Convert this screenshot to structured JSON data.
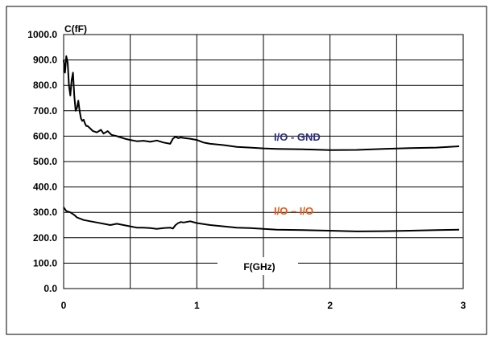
{
  "chart_data": {
    "type": "line",
    "ylabel": "C(fF)",
    "xlabel": "F(GHz)",
    "xlim": [
      0,
      3
    ],
    "ylim": [
      0,
      1000
    ],
    "x_ticks": [
      "0",
      "1",
      "2",
      "3"
    ],
    "y_ticks": [
      "0.0",
      "100.0",
      "200.0",
      "300.0",
      "400.0",
      "500.0",
      "600.0",
      "700.0",
      "800.0",
      "900.0",
      "1000.0"
    ],
    "grid": true,
    "series": [
      {
        "name": "I/O - GND",
        "color": "#2e2e80",
        "x": [
          0.0,
          0.01,
          0.02,
          0.03,
          0.04,
          0.05,
          0.06,
          0.07,
          0.08,
          0.09,
          0.1,
          0.11,
          0.12,
          0.13,
          0.14,
          0.15,
          0.16,
          0.17,
          0.18,
          0.2,
          0.22,
          0.25,
          0.28,
          0.3,
          0.33,
          0.36,
          0.4,
          0.43,
          0.46,
          0.5,
          0.55,
          0.6,
          0.65,
          0.7,
          0.75,
          0.8,
          0.82,
          0.84,
          0.86,
          0.88,
          0.9,
          0.95,
          1.0,
          1.05,
          1.1,
          1.2,
          1.3,
          1.4,
          1.5,
          1.6,
          1.8,
          2.0,
          2.2,
          2.4,
          2.6,
          2.8,
          2.97
        ],
        "y": [
          900,
          850,
          915,
          890,
          800,
          760,
          820,
          850,
          760,
          700,
          710,
          740,
          700,
          670,
          660,
          665,
          650,
          640,
          640,
          630,
          620,
          615,
          625,
          610,
          620,
          605,
          600,
          595,
          590,
          585,
          580,
          582,
          578,
          583,
          575,
          570,
          590,
          598,
          592,
          595,
          593,
          590,
          585,
          575,
          570,
          565,
          558,
          555,
          552,
          550,
          548,
          545,
          546,
          550,
          553,
          555,
          560
        ]
      },
      {
        "name": "I/O – I/O",
        "color": "#e35a1b",
        "x": [
          0.0,
          0.02,
          0.05,
          0.08,
          0.1,
          0.15,
          0.2,
          0.25,
          0.3,
          0.35,
          0.4,
          0.45,
          0.5,
          0.55,
          0.6,
          0.65,
          0.7,
          0.75,
          0.8,
          0.82,
          0.84,
          0.86,
          0.88,
          0.9,
          0.95,
          1.0,
          1.1,
          1.2,
          1.3,
          1.4,
          1.5,
          1.6,
          1.8,
          2.0,
          2.2,
          2.4,
          2.6,
          2.8,
          2.97
        ],
        "y": [
          320,
          305,
          300,
          290,
          280,
          270,
          265,
          260,
          255,
          250,
          255,
          250,
          245,
          240,
          240,
          238,
          235,
          238,
          240,
          236,
          250,
          258,
          262,
          260,
          265,
          258,
          250,
          245,
          240,
          238,
          235,
          232,
          230,
          228,
          225,
          226,
          228,
          230,
          232
        ]
      }
    ]
  }
}
